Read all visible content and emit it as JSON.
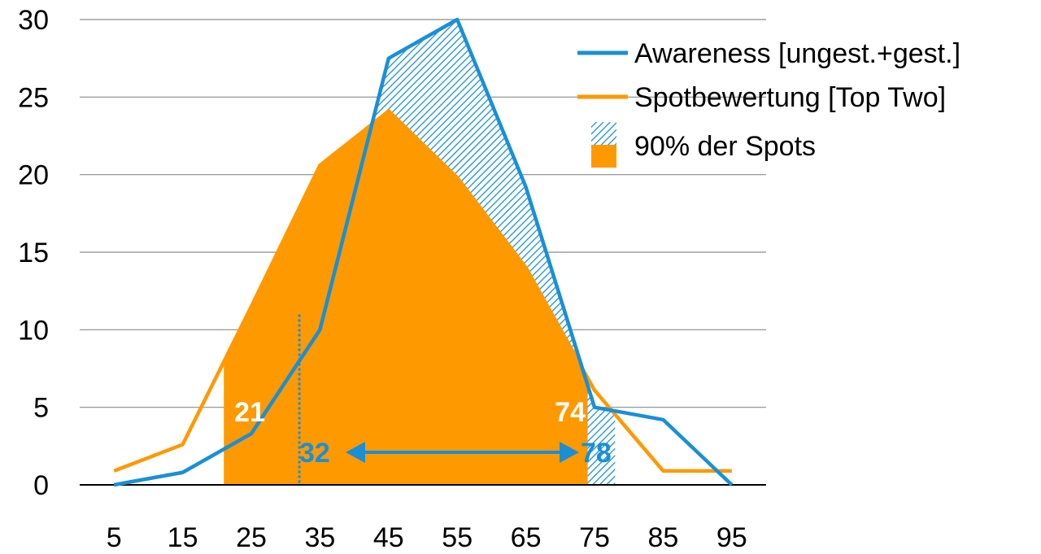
{
  "chart_data": {
    "type": "line",
    "title": "",
    "xlabel": "",
    "ylabel": "",
    "x": [
      5,
      15,
      25,
      35,
      45,
      55,
      65,
      75,
      85,
      95
    ],
    "x_tick_labels": [
      "5",
      "15",
      "25",
      "35",
      "45",
      "55",
      "65",
      "75",
      "85",
      "95"
    ],
    "ylim": [
      0,
      30
    ],
    "y_ticks": [
      0,
      5,
      10,
      15,
      20,
      25,
      30
    ],
    "y_tick_labels": [
      "0",
      "5",
      "10",
      "15",
      "20",
      "25",
      "30"
    ],
    "grid": "horizontal",
    "legend_position": "top-right",
    "series": [
      {
        "name": "Awareness [ungest.+gest.]",
        "color": "#1a8fd6",
        "values": [
          0,
          0.8,
          3.3,
          10,
          27.5,
          30,
          19.2,
          5,
          4.2,
          0
        ],
        "band": [
          32,
          78
        ]
      },
      {
        "name": "Spotbewertung [Top Two]",
        "color": "#ff9900",
        "values": [
          0.9,
          2.6,
          11.5,
          20.6,
          24.1,
          19.8,
          14,
          6.1,
          0.9,
          0.9
        ],
        "band": [
          21,
          74
        ]
      }
    ],
    "area_legend_label": "90% der Spots",
    "annotations": {
      "spot_low": "21",
      "spot_high": "74",
      "aware_low": "32",
      "aware_high": "78"
    }
  }
}
